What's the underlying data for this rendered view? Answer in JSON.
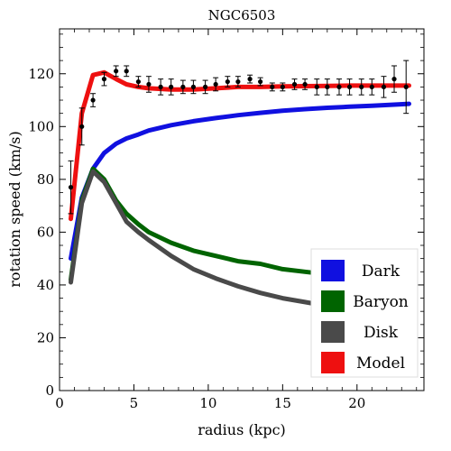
{
  "chart_data": {
    "type": "line",
    "title": "NGC6503",
    "xlabel": "radius (kpc)",
    "ylabel": "rotation speed (km/s)",
    "xlim": [
      0,
      24.5
    ],
    "ylim": [
      0,
      137
    ],
    "x_ticks": [
      0,
      5,
      10,
      15,
      20
    ],
    "y_ticks": [
      0,
      20,
      40,
      60,
      80,
      100,
      120
    ],
    "x_tick_labels": [
      "0",
      "5",
      "10",
      "15",
      "20"
    ],
    "y_tick_labels": [
      "0",
      "20",
      "40",
      "60",
      "80",
      "100",
      "120"
    ],
    "grid": false,
    "legend_position": "bottom-right",
    "observed": {
      "x": [
        0.76,
        1.5,
        2.25,
        3.0,
        3.8,
        4.5,
        5.3,
        6.0,
        6.8,
        7.5,
        8.3,
        9.0,
        9.8,
        10.5,
        11.3,
        12.0,
        12.8,
        13.5,
        14.3,
        15.0,
        15.8,
        16.5,
        17.3,
        18.0,
        18.8,
        19.5,
        20.3,
        21.0,
        21.8,
        22.5,
        23.3
      ],
      "y": [
        77,
        100,
        110,
        118,
        121,
        121,
        117,
        116,
        115,
        115,
        115,
        115,
        115,
        116,
        117,
        117,
        118,
        117,
        115,
        115,
        116,
        116,
        115,
        115,
        115,
        115,
        115,
        115,
        115,
        118,
        115
      ],
      "err": [
        10,
        7,
        2.5,
        2.5,
        2,
        2,
        2,
        3,
        3,
        3,
        2.5,
        2.5,
        2.5,
        2.5,
        2,
        2,
        1.5,
        1.5,
        1.5,
        1.5,
        2,
        2,
        3,
        3,
        3,
        3,
        3,
        3,
        4,
        5,
        10
      ]
    },
    "series": [
      {
        "name": "Dark",
        "color": "#1010e0",
        "x": [
          0.76,
          1.5,
          2.25,
          3.0,
          3.8,
          4.5,
          5.3,
          6.0,
          7.5,
          9.0,
          10.5,
          12.0,
          13.5,
          15.0,
          16.5,
          18.0,
          19.5,
          21.0,
          22.5,
          23.5
        ],
        "y": [
          50,
          73,
          84,
          90,
          93.5,
          95.5,
          97,
          98.5,
          100.5,
          102,
          103.2,
          104.3,
          105.2,
          106,
          106.6,
          107.1,
          107.5,
          107.9,
          108.3,
          108.6
        ]
      },
      {
        "name": "Baryon",
        "color": "#006400",
        "x": [
          0.76,
          1.5,
          2.25,
          3.0,
          3.8,
          4.5,
          5.3,
          6.0,
          7.5,
          9.0,
          10.5,
          12.0,
          13.5,
          15.0,
          16.5,
          18.0,
          19.5,
          21.0,
          22.5,
          23.5
        ],
        "y": [
          42,
          72,
          84,
          80,
          72,
          67,
          63,
          60,
          56,
          53,
          51,
          49,
          48,
          46,
          45,
          44,
          43,
          42,
          41.5,
          41
        ]
      },
      {
        "name": "Disk",
        "color": "#4a4a4a",
        "x": [
          0.76,
          1.5,
          2.25,
          3.0,
          3.8,
          4.5,
          5.3,
          6.0,
          7.5,
          9.0,
          10.5,
          12.0,
          13.5,
          15.0,
          16.5,
          18.0,
          19.5,
          21.0,
          22.5,
          23.5
        ],
        "y": [
          41,
          71,
          83,
          79,
          71,
          64,
          60,
          57,
          51,
          46,
          42.5,
          39.5,
          37,
          35,
          33.5,
          32,
          31,
          30,
          29,
          28.5
        ]
      },
      {
        "name": "Model",
        "color": "#ee1010",
        "x": [
          0.76,
          1.5,
          2.25,
          3.0,
          3.8,
          4.5,
          5.3,
          6.0,
          7.5,
          9.0,
          10.5,
          12.0,
          13.5,
          15.0,
          16.5,
          18.0,
          19.5,
          21.0,
          22.5,
          23.5
        ],
        "y": [
          65,
          105,
          119.5,
          120.5,
          118,
          116,
          115,
          114.5,
          114,
          114,
          114.5,
          115,
          115,
          115.2,
          115.3,
          115.4,
          115.5,
          115.5,
          115.5,
          115.5
        ]
      }
    ]
  }
}
